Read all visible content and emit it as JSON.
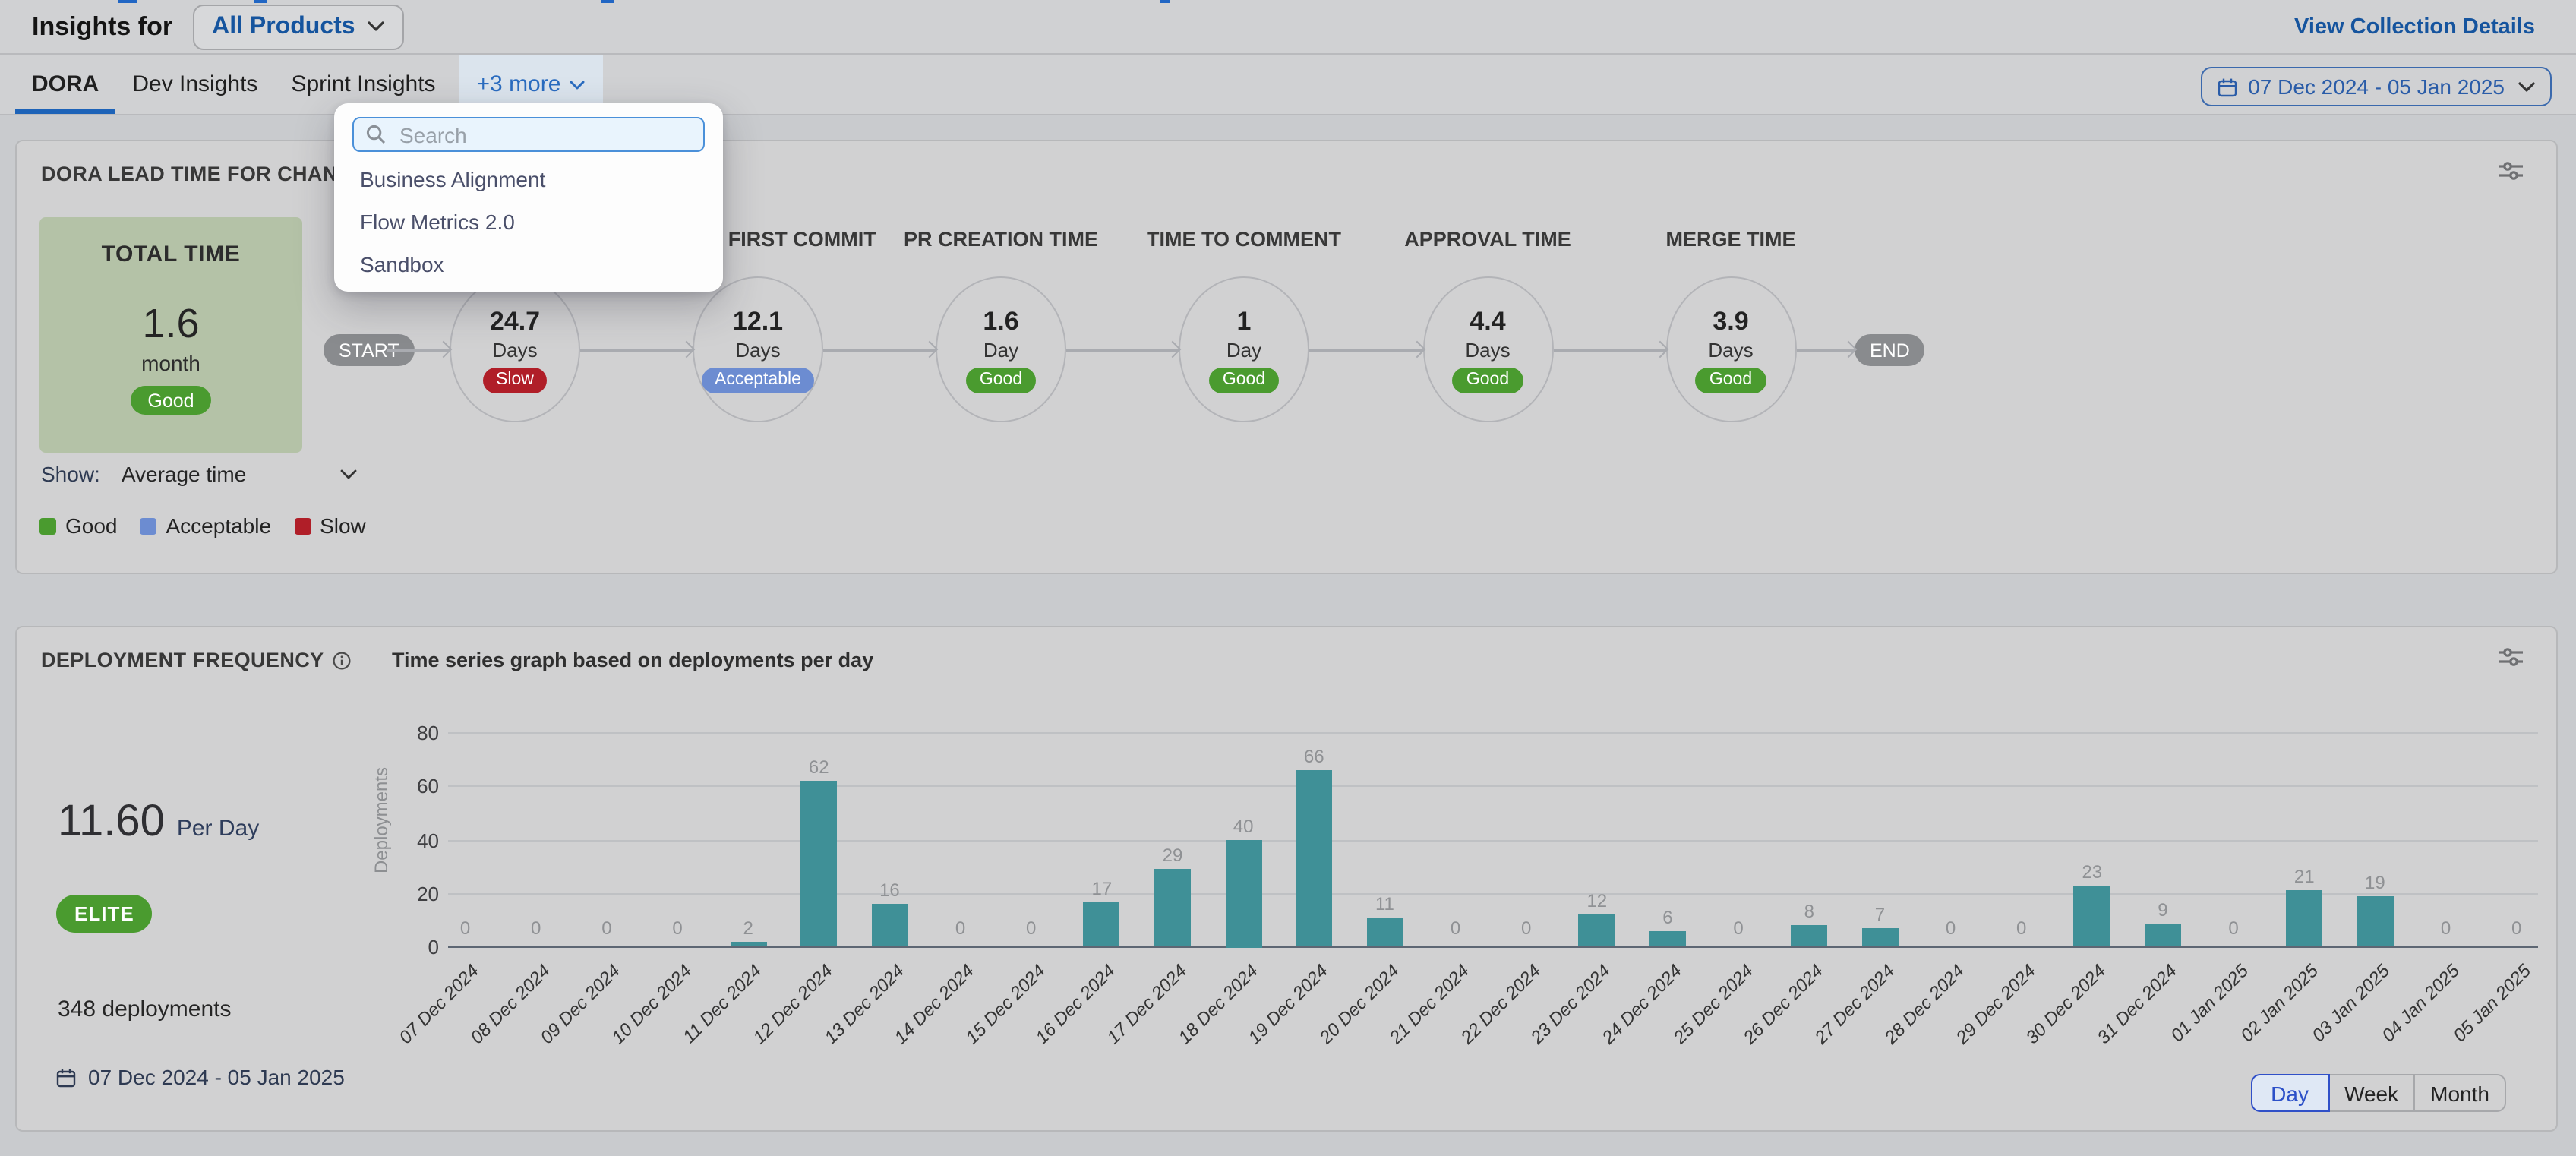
{
  "header": {
    "title": "Insights for",
    "scope_selector": "All Products",
    "view_link": "View Collection Details"
  },
  "tabs": {
    "items": [
      {
        "label": "DORA",
        "active": true
      },
      {
        "label": "Dev Insights",
        "active": false
      },
      {
        "label": "Sprint Insights",
        "active": false
      }
    ],
    "more_label": "+3 more"
  },
  "more_menu": {
    "search_placeholder": "Search",
    "items": [
      "Business Alignment",
      "Flow Metrics 2.0",
      "Sandbox"
    ]
  },
  "date_filter": {
    "label": "07 Dec 2024 - 05 Jan 2025"
  },
  "lead_time_card": {
    "title": "DORA LEAD TIME FOR CHANGES REP",
    "total_box": {
      "heading": "TOTAL TIME",
      "value": "1.6",
      "unit": "month",
      "rating": "Good"
    },
    "show": {
      "label": "Show:",
      "value": "Average time"
    },
    "legend": [
      {
        "label": "Good",
        "key": "good"
      },
      {
        "label": "Acceptable",
        "key": "acceptable"
      },
      {
        "label": "Slow",
        "key": "slow"
      }
    ],
    "flow": {
      "start_label": "START",
      "end_label": "END",
      "stages": [
        {
          "label": "",
          "value": "24.7",
          "unit": "Days",
          "rating": "Slow",
          "key": "slow"
        },
        {
          "label": "TIME TO FIRST COMMIT",
          "value": "12.1",
          "unit": "Days",
          "rating": "Acceptable",
          "key": "acceptable"
        },
        {
          "label": "PR CREATION TIME",
          "value": "1.6",
          "unit": "Day",
          "rating": "Good",
          "key": "good"
        },
        {
          "label": "TIME TO COMMENT",
          "value": "1",
          "unit": "Day",
          "rating": "Good",
          "key": "good"
        },
        {
          "label": "APPROVAL TIME",
          "value": "4.4",
          "unit": "Days",
          "rating": "Good",
          "key": "good"
        },
        {
          "label": "MERGE TIME",
          "value": "3.9",
          "unit": "Days",
          "rating": "Good",
          "key": "good"
        }
      ]
    }
  },
  "deployment_card": {
    "title": "DEPLOYMENT FREQUENCY",
    "subtitle": "Time series graph based on deployments per day",
    "rate": {
      "value": "11.60",
      "unit": "Per Day"
    },
    "badge": "ELITE",
    "total": "348 deployments",
    "date_range": "07 Dec 2024 - 05 Jan 2025",
    "granularity": {
      "options": [
        "Day",
        "Week",
        "Month"
      ],
      "active": "Day"
    }
  },
  "chart_data": {
    "type": "bar",
    "title": "Time series graph based on deployments per day",
    "xlabel": "",
    "ylabel": "Deployments",
    "ylim": [
      0,
      80
    ],
    "yticks": [
      0,
      20,
      40,
      60,
      80
    ],
    "grid": true,
    "value_labels": true,
    "legend_position": "none",
    "categories": [
      "07 Dec 2024",
      "08 Dec 2024",
      "09 Dec 2024",
      "10 Dec 2024",
      "11 Dec 2024",
      "12 Dec 2024",
      "13 Dec 2024",
      "14 Dec 2024",
      "15 Dec 2024",
      "16 Dec 2024",
      "17 Dec 2024",
      "18 Dec 2024",
      "19 Dec 2024",
      "20 Dec 2024",
      "21 Dec 2024",
      "22 Dec 2024",
      "23 Dec 2024",
      "24 Dec 2024",
      "25 Dec 2024",
      "26 Dec 2024",
      "27 Dec 2024",
      "28 Dec 2024",
      "29 Dec 2024",
      "30 Dec 2024",
      "31 Dec 2024",
      "01 Jan 2025",
      "02 Jan 2025",
      "03 Jan 2025",
      "04 Jan 2025",
      "05 Jan 2025"
    ],
    "values": [
      0,
      0,
      0,
      0,
      2,
      62,
      16,
      0,
      0,
      17,
      29,
      40,
      66,
      11,
      0,
      0,
      12,
      6,
      0,
      8,
      7,
      0,
      0,
      23,
      9,
      0,
      21,
      19,
      0,
      0
    ]
  },
  "colors": {
    "good": "#4a9b2f",
    "acceptable": "#6c8cd1",
    "slow": "#b01e28",
    "bar": "#3f9097",
    "link_blue": "#15549e",
    "date_blue": "#2a5ca8",
    "tab_underline": "#1d63b8"
  }
}
